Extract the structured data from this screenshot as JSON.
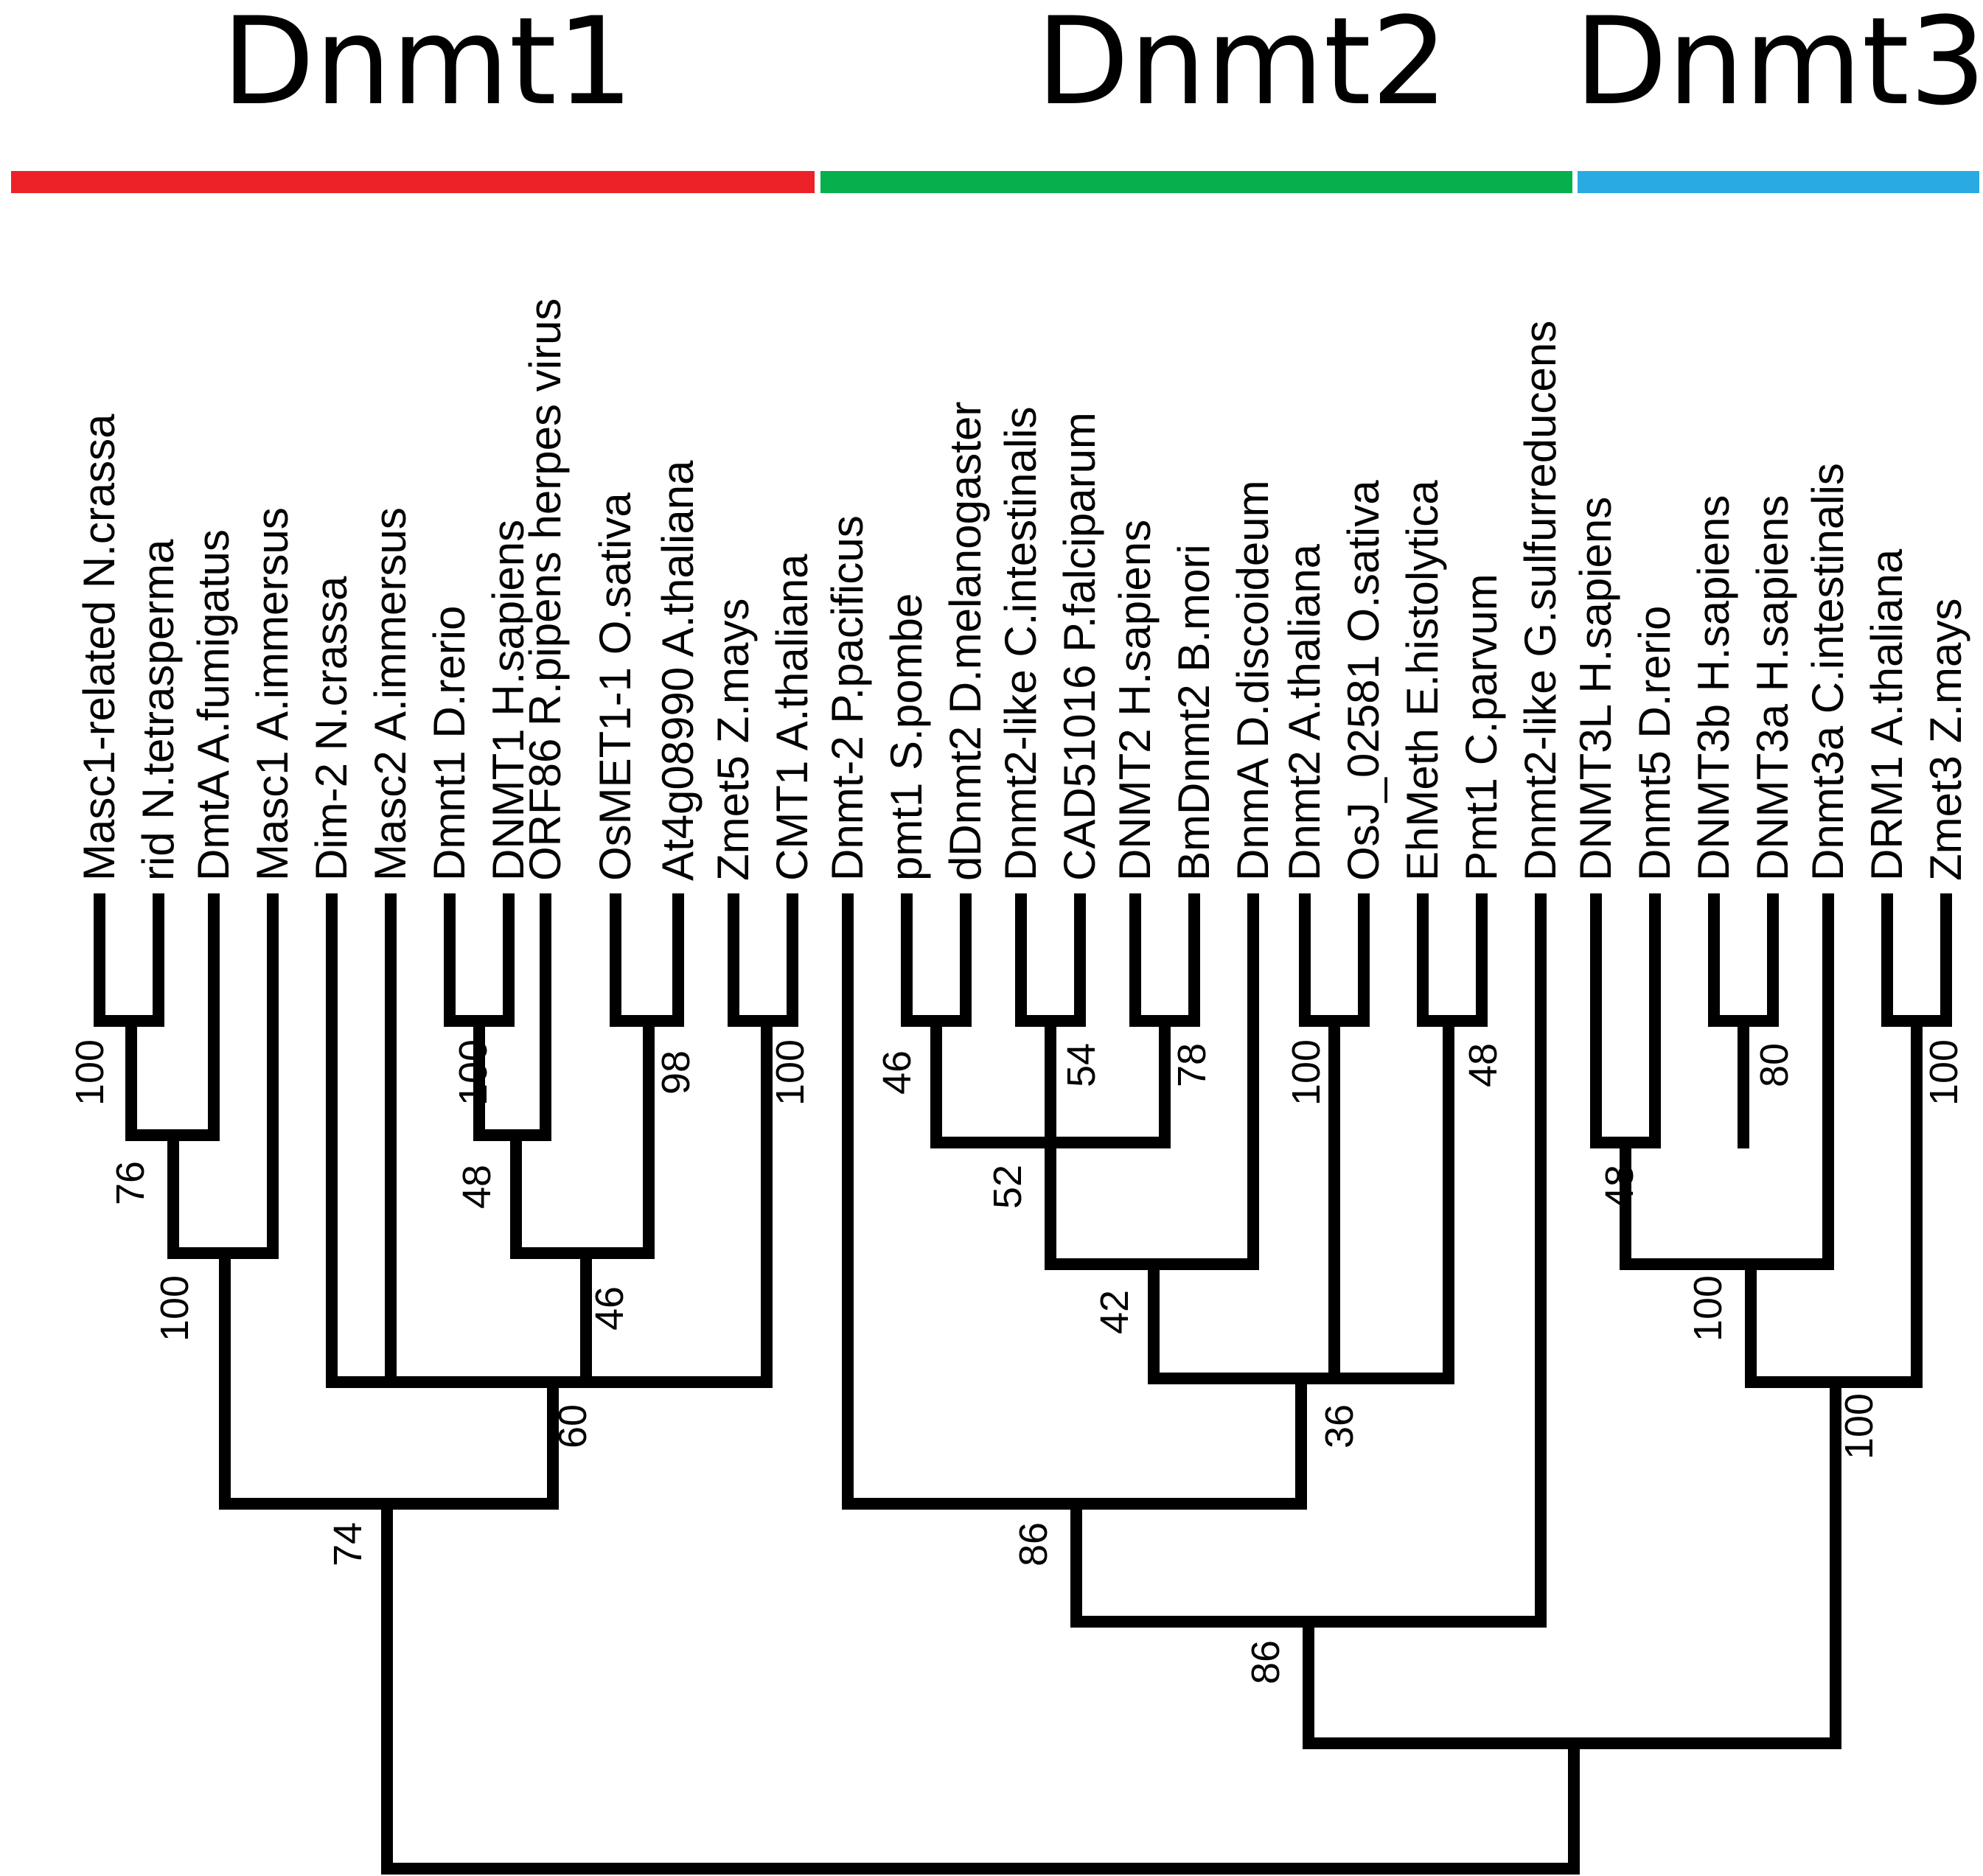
{
  "families": [
    {
      "name": "Dnmt1",
      "color": "#ed2228"
    },
    {
      "name": "Dnmt2",
      "color": "#06b04c"
    },
    {
      "name": "Dnmt3",
      "color": "#29abe2"
    }
  ],
  "leaves": [
    "Masc1-related N.crassa",
    "rid N.tetrasperma",
    "DmtA A.fumigatus",
    "Masc1 A.immersus",
    "Dim-2 N.crassa",
    "Masc2 A.immersus",
    "Dmnt1 D.rerio",
    "DNMT1 H.sapiens",
    "ORF86 R.pipens herpes virus",
    "OsMET1-1 O.sativa",
    "At4g08990 A.thaliana",
    "Zmet5 Z.mays",
    "CMT1 A.thaliana",
    "Dnmt-2 P.pacificus",
    "pmt1 S.pombe",
    "dDnmt2 D.melanogaster",
    "Dnmt2-like C.intestinalis",
    "CAD51016 P.falciparum",
    "DNMT2 H.sapiens",
    "BmDnmt2 B.mori",
    "DnmA D.discoideum",
    "Dnmt2 A.thaliana",
    "OsJ_02581 O.sativa",
    "EhMeth E.histolytica",
    "Pmt1 C.parvum",
    "Dnmt2-like G.sulfurreducens",
    "DNMT3L H.sapiens",
    "Dnmt5 D.rerio",
    "DNMT3b H.sapiens",
    "DNMT3a H.sapiens",
    "Dnmt3a C.intestinalis",
    "DRM1 A.thaliana",
    "Zmet3 Z.mays"
  ],
  "support_values": [
    "100",
    "76",
    "100",
    "100",
    "48",
    "98",
    "46",
    "100",
    "60",
    "74",
    "46",
    "54",
    "78",
    "52",
    "42",
    "100",
    "48",
    "36",
    "86",
    "86",
    "48",
    "80",
    "100",
    "100",
    "100"
  ]
}
